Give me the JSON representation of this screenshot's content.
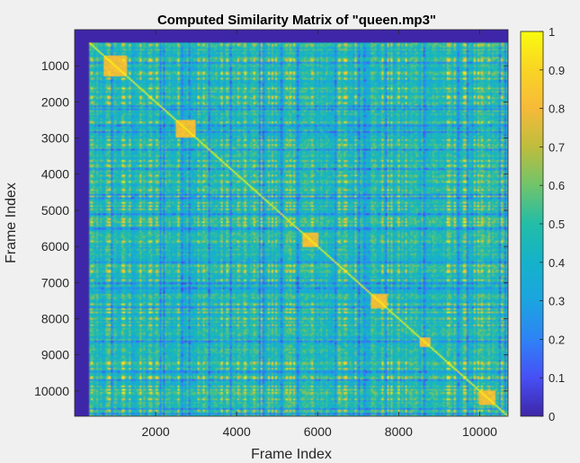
{
  "chart_data": {
    "type": "heatmap",
    "title": "Computed Similarity Matrix of \"queen.mp3\"",
    "xlabel": "Frame Index",
    "ylabel": "Frame Index",
    "xlim": [
      0,
      10700
    ],
    "ylim": [
      0,
      10700
    ],
    "x_ticks": [
      2000,
      4000,
      6000,
      8000,
      10000
    ],
    "y_ticks": [
      1000,
      2000,
      3000,
      4000,
      5000,
      6000,
      7000,
      8000,
      9000,
      10000
    ],
    "x_tick_labels": [
      "2000",
      "4000",
      "6000",
      "8000",
      "10000"
    ],
    "y_tick_labels": [
      "1000",
      "2000",
      "3000",
      "4000",
      "5000",
      "6000",
      "7000",
      "8000",
      "9000",
      "10000"
    ],
    "y_direction": "reversed",
    "colormap": "parula",
    "colorbar": {
      "range": [
        0,
        1
      ],
      "ticks": [
        0,
        0.1,
        0.2,
        0.3,
        0.4,
        0.5,
        0.6,
        0.7,
        0.8,
        0.9,
        1
      ],
      "tick_labels": [
        "0",
        "0.1",
        "0.2",
        "0.3",
        "0.4",
        "0.5",
        "0.6",
        "0.7",
        "0.8",
        "0.9",
        "1"
      ],
      "placement": "right"
    },
    "zero_region": {
      "x_end": 350,
      "y_end": 350
    },
    "diagonal_value": 1,
    "background_similarity": 0.45,
    "high_similarity_blocks": [
      {
        "x": [
          700,
          1300
        ],
        "y": [
          700,
          1300
        ],
        "value": 0.85
      },
      {
        "x": [
          2500,
          3000
        ],
        "y": [
          2500,
          3000
        ],
        "value": 0.85
      },
      {
        "x": [
          5600,
          6000
        ],
        "y": [
          5600,
          6000
        ],
        "value": 0.85
      },
      {
        "x": [
          7300,
          7700
        ],
        "y": [
          7300,
          7700
        ],
        "value": 0.85
      },
      {
        "x": [
          8500,
          8800
        ],
        "y": [
          8500,
          8800
        ],
        "value": 0.85
      },
      {
        "x": [
          10000,
          10400
        ],
        "y": [
          10000,
          10400
        ],
        "value": 0.85
      }
    ],
    "grid": false
  }
}
